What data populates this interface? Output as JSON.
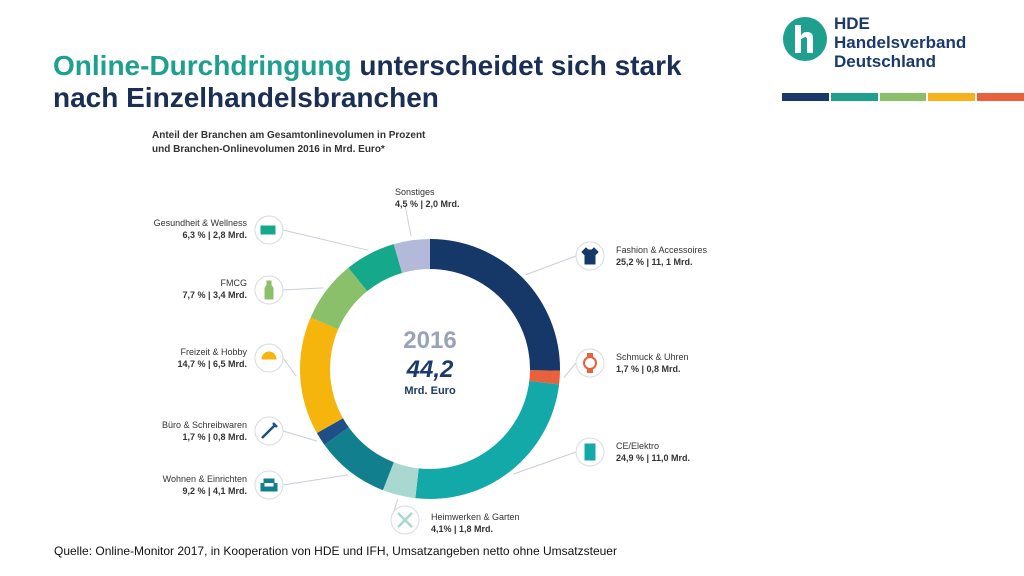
{
  "title": {
    "highlight": "Online-Durchdringung",
    "rest_line1": " unterscheidet sich stark",
    "line2": "nach Einzelhandelsbranchen"
  },
  "logo": {
    "line1": "HDE",
    "line2": "Handelsverband",
    "line3": "Deutschland",
    "stripe_colors": [
      "#1b3a6b",
      "#1fa08f",
      "#8bc06b",
      "#f5b21b",
      "#e8603c"
    ]
  },
  "subtitle": {
    "line1": "Anteil der Branchen am Gesamtonlinevolumen in Prozent",
    "line2": "und Branchen-Onlinevolumen 2016 in Mrd. Euro*"
  },
  "center": {
    "year": "2016",
    "value": "44,2",
    "unit": "Mrd. Euro"
  },
  "source": "Quelle: Online-Monitor 2017, in Kooperation von HDE und IFH, Umsatzangeben netto ohne Umsatzsteuer",
  "chart_data": {
    "type": "pie",
    "donut": true,
    "slices": [
      {
        "name": "Fashion & Accessoires",
        "value": 25.2,
        "label": "25,2 % | 11, 1 Mrd.",
        "color": "#163868",
        "icon": "tshirt-icon"
      },
      {
        "name": "Schmuck & Uhren",
        "value": 1.7,
        "label": "1,7 % | 0,8 Mrd.",
        "color": "#e8603c",
        "icon": "watch-icon"
      },
      {
        "name": "CE/Elektro",
        "value": 24.9,
        "label": "24,9 % | 11,0 Mrd.",
        "color": "#13a9a9",
        "icon": "tablet-icon"
      },
      {
        "name": "Heimwerken & Garten",
        "value": 4.1,
        "label": "4,1% | 1,8 Mrd.",
        "color": "#a8d8d0",
        "icon": "tools-icon"
      },
      {
        "name": "Wohnen & Einrichten",
        "value": 9.2,
        "label": "9,2 % | 4,1 Mrd.",
        "color": "#117f8d",
        "icon": "armchair-icon"
      },
      {
        "name": "Büro & Schreibwaren",
        "value": 1.7,
        "label": "1,7 % | 0,8 Mrd.",
        "color": "#1e4f86",
        "icon": "pen-icon"
      },
      {
        "name": "Freizeit & Hobby",
        "value": 14.7,
        "label": "14,7 % | 6,5 Mrd.",
        "color": "#f5b50d",
        "icon": "ball-icon"
      },
      {
        "name": "FMCG",
        "value": 7.7,
        "label": "7,7 % | 3,4 Mrd.",
        "color": "#8bc06b",
        "icon": "bottle-icon"
      },
      {
        "name": "Gesundheit & Wellness",
        "value": 6.3,
        "label": "6,3 % | 2,8 Mrd.",
        "color": "#16a88b",
        "icon": "pills-icon"
      },
      {
        "name": "Sonstiges",
        "value": 4.5,
        "label": "4,5 % | 2,0 Mrd.",
        "color": "#b3b9d8",
        "icon": ""
      }
    ]
  }
}
